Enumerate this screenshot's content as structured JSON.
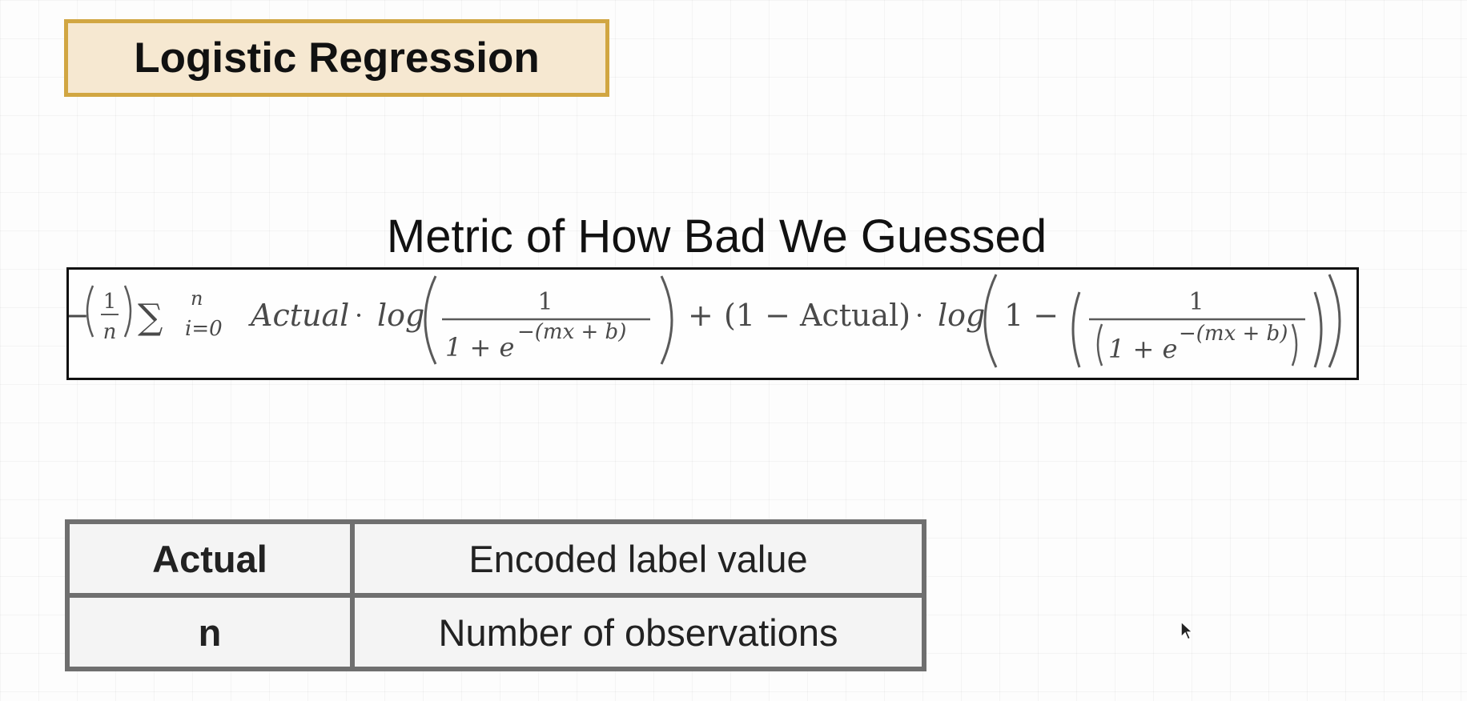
{
  "slide": {
    "title": "Logistic Regression",
    "subtitle": "Metric of How Bad We Guessed"
  },
  "formula": {
    "minus": "−",
    "one": "1",
    "n": "n",
    "sum": "∑",
    "sum_upper": "n",
    "sum_lower": "i=0",
    "actual": "Actual",
    "dot": "·",
    "log": "log",
    "denominator": "1 + e",
    "exponent": "−(mx + b)",
    "plus": "+",
    "one_minus_actual": "(1 − Actual)",
    "one_minus": "1 −"
  },
  "variables": {
    "rows": [
      {
        "term": "Actual",
        "description": "Encoded label value"
      },
      {
        "term": "n",
        "description": "Number of observations"
      }
    ]
  }
}
